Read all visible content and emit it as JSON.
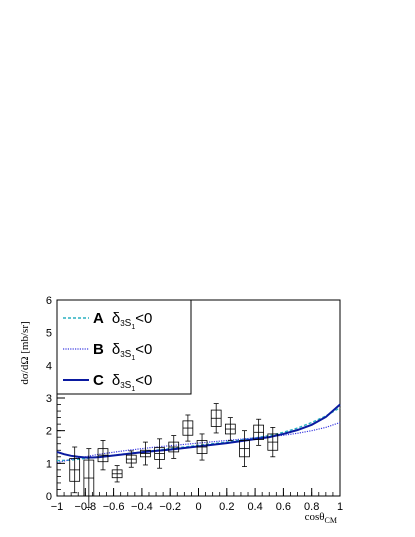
{
  "chart_data": {
    "type": "scatter",
    "title": "",
    "xlabel_main": "cosθ",
    "xlabel_sub": "CM",
    "ylabel": "dσ/dΩ [mb/sr]",
    "xlim": [
      -1,
      1
    ],
    "ylim": [
      0,
      6
    ],
    "x_ticks": [
      -1,
      -0.8,
      -0.6,
      -0.4,
      -0.2,
      0,
      0.2,
      0.4,
      0.6,
      0.8,
      1
    ],
    "x_tick_labels": [
      "−1",
      "−0.8",
      "−0.6",
      "−0.4",
      "−0.2",
      "0",
      "0.2",
      "0.4",
      "0.6",
      "0.8",
      "1"
    ],
    "y_ticks": [
      0,
      1,
      2,
      3,
      4,
      5,
      6
    ],
    "y_tick_labels": [
      "0",
      "1",
      "2",
      "3",
      "4",
      "5",
      "6"
    ],
    "grid": false,
    "legend_position": "top-left",
    "colors": {
      "A": "#2ab0c0",
      "B": "#3a3ae0",
      "C": "#0a1aa0",
      "data": "#000000"
    },
    "data_points": [
      {
        "x": -0.875,
        "y": 0.8,
        "sys": 0.35,
        "stat": 0.7
      },
      {
        "x": -0.775,
        "y": 0.55,
        "sys": 0.55,
        "stat": 0.9
      },
      {
        "x": -0.675,
        "y": 1.25,
        "sys": 0.2,
        "stat": 0.45
      },
      {
        "x": -0.575,
        "y": 0.68,
        "sys": 0.12,
        "stat": 0.25
      },
      {
        "x": -0.475,
        "y": 1.13,
        "sys": 0.12,
        "stat": 0.25
      },
      {
        "x": -0.375,
        "y": 1.3,
        "sys": 0.1,
        "stat": 0.35
      },
      {
        "x": -0.275,
        "y": 1.3,
        "sys": 0.18,
        "stat": 0.45
      },
      {
        "x": -0.175,
        "y": 1.5,
        "sys": 0.15,
        "stat": 0.35
      },
      {
        "x": -0.075,
        "y": 2.08,
        "sys": 0.22,
        "stat": 0.4
      },
      {
        "x": 0.025,
        "y": 1.5,
        "sys": 0.2,
        "stat": 0.4
      },
      {
        "x": 0.125,
        "y": 2.38,
        "sys": 0.25,
        "stat": 0.45
      },
      {
        "x": 0.225,
        "y": 2.05,
        "sys": 0.15,
        "stat": 0.35
      },
      {
        "x": 0.325,
        "y": 1.45,
        "sys": 0.25,
        "stat": 0.55
      },
      {
        "x": 0.425,
        "y": 1.95,
        "sys": 0.22,
        "stat": 0.4
      },
      {
        "x": 0.525,
        "y": 1.65,
        "sys": 0.25,
        "stat": 0.45
      }
    ],
    "box_half_width": 0.035,
    "curves": [
      {
        "name": "A",
        "label": "A",
        "dash": "3,2",
        "width": 1.4,
        "x": [
          -1,
          -0.9,
          -0.8,
          -0.7,
          -0.6,
          -0.5,
          -0.4,
          -0.3,
          -0.2,
          -0.1,
          0,
          0.1,
          0.2,
          0.3,
          0.4,
          0.5,
          0.6,
          0.7,
          0.8,
          0.9,
          1
        ],
        "y": [
          1.08,
          1.1,
          1.15,
          1.2,
          1.25,
          1.3,
          1.35,
          1.4,
          1.45,
          1.5,
          1.55,
          1.6,
          1.65,
          1.72,
          1.78,
          1.85,
          1.95,
          2.08,
          2.25,
          2.45,
          2.7
        ]
      },
      {
        "name": "B",
        "label": "B",
        "dash": "1.2,1.2",
        "width": 1.2,
        "x": [
          -1,
          -0.9,
          -0.8,
          -0.7,
          -0.6,
          -0.5,
          -0.4,
          -0.3,
          -0.2,
          -0.1,
          0,
          0.1,
          0.2,
          0.3,
          0.4,
          0.5,
          0.6,
          0.7,
          0.8,
          0.9,
          1
        ],
        "y": [
          1.02,
          1.12,
          1.2,
          1.28,
          1.34,
          1.4,
          1.45,
          1.5,
          1.54,
          1.58,
          1.62,
          1.66,
          1.7,
          1.74,
          1.78,
          1.82,
          1.86,
          1.92,
          2.0,
          2.1,
          2.25
        ]
      },
      {
        "name": "C",
        "label": "C",
        "dash": "",
        "width": 2.0,
        "x": [
          -1,
          -0.95,
          -0.9,
          -0.85,
          -0.8,
          -0.75,
          -0.7,
          -0.6,
          -0.5,
          -0.4,
          -0.3,
          -0.2,
          -0.1,
          0,
          0.1,
          0.2,
          0.3,
          0.4,
          0.5,
          0.6,
          0.7,
          0.8,
          0.9,
          1
        ],
        "y": [
          1.35,
          1.28,
          1.23,
          1.2,
          1.18,
          1.18,
          1.19,
          1.24,
          1.29,
          1.34,
          1.38,
          1.42,
          1.47,
          1.52,
          1.57,
          1.62,
          1.68,
          1.74,
          1.8,
          1.9,
          2.02,
          2.18,
          2.42,
          2.8
        ]
      }
    ],
    "legend_entries": [
      {
        "curve": "A",
        "label": "A",
        "delta": "δ",
        "sup": "3",
        "sub1": "S",
        "sub2": "1",
        "relation": "<0"
      },
      {
        "curve": "B",
        "label": "B",
        "delta": "δ",
        "sup": "3",
        "sub1": "S",
        "sub2": "1",
        "relation": "<0"
      },
      {
        "curve": "C",
        "label": "C",
        "delta": "δ",
        "sup": "3",
        "sub1": "S",
        "sub2": "1",
        "relation": "<0"
      }
    ]
  }
}
